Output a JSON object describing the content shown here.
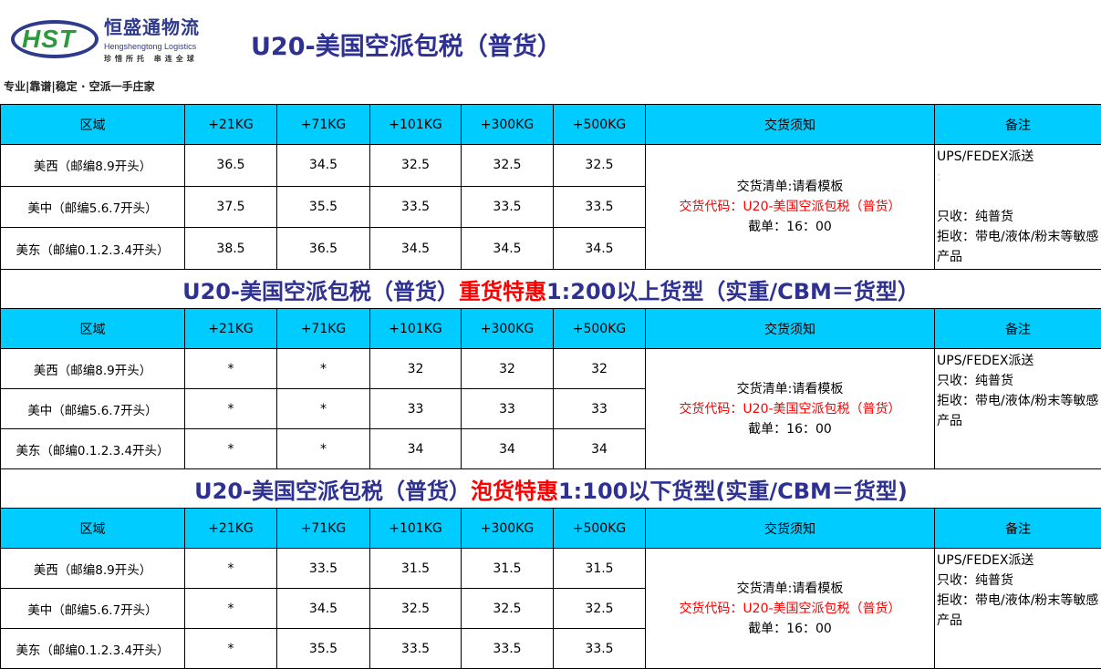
{
  "logo": {
    "mark": "HST",
    "name_cn": "恒盛通物流",
    "name_en": "Hengshengtong Logistics",
    "tagline": "珍惜所托  串连全球",
    "slogan": "专业|靠谱|稳定 · 空派一手庄家"
  },
  "page_title": "U20-美国空派包税（普货）",
  "colors": {
    "header_bg": "#00ccff",
    "title_blue": "#2e3192",
    "accent_red": "#ff0000"
  },
  "columns": [
    "区域",
    "+21KG",
    "+71KG",
    "+101KG",
    "+300KG",
    "+500KG",
    "交货须知",
    "备注"
  ],
  "sections": [
    {
      "rows": [
        {
          "region": "美西（邮编8.9开头）",
          "prices": [
            "36.5",
            "34.5",
            "32.5",
            "32.5",
            "32.5"
          ]
        },
        {
          "region": "美中（邮编5.6.7开头）",
          "prices": [
            "37.5",
            "35.5",
            "33.5",
            "33.5",
            "33.5"
          ]
        },
        {
          "region": "美东（邮编0.1.2.3.4开头）",
          "prices": [
            "38.5",
            "36.5",
            "34.5",
            "34.5",
            "34.5"
          ]
        }
      ],
      "notes": {
        "line1": "交货清单:请看模板",
        "line2": "交货代码：U20-美国空派包税（普货）",
        "line3": "截单：16：00"
      },
      "remarks": {
        "line1": "UPS/FEDEX派送",
        "line2": ":",
        "line3": "只收：纯普货",
        "line4": "拒收：带电/液体/粉末等敏感产品"
      }
    },
    {
      "title": {
        "part1": "U20-美国空派包税（普货）",
        "part2": "重货特惠",
        "part3": "1:200以上货型（实重/CBM＝货型）"
      },
      "rows": [
        {
          "region": "美西（邮编8.9开头）",
          "prices": [
            "*",
            "*",
            "32",
            "32",
            "32"
          ]
        },
        {
          "region": "美中（邮编5.6.7开头）",
          "prices": [
            "*",
            "*",
            "33",
            "33",
            "33"
          ]
        },
        {
          "region": "美东（邮编0.1.2.3.4开头）",
          "prices": [
            "*",
            "*",
            "34",
            "34",
            "34"
          ]
        }
      ],
      "notes": {
        "line1": "交货清单:请看模板",
        "line2": "交货代码：U20-美国空派包税（普货）",
        "line3": "截单：16：00"
      },
      "remarks": {
        "line1": "UPS/FEDEX派送",
        "line3": "只收：纯普货",
        "line4": "拒收：带电/液体/粉末等敏感产品"
      }
    },
    {
      "title": {
        "part1": "U20-美国空派包税（普货）",
        "part2": "泡货特惠",
        "part3": "1:100以下货型(实重/CBM＝货型)"
      },
      "rows": [
        {
          "region": "美西（邮编8.9开头）",
          "prices": [
            "*",
            "33.5",
            "31.5",
            "31.5",
            "31.5"
          ]
        },
        {
          "region": "美中（邮编5.6.7开头）",
          "prices": [
            "*",
            "34.5",
            "32.5",
            "32.5",
            "32.5"
          ]
        },
        {
          "region": "美东（邮编0.1.2.3.4开头）",
          "prices": [
            "*",
            "35.5",
            "33.5",
            "33.5",
            "33.5"
          ]
        }
      ],
      "notes": {
        "line1": "交货清单:请看模板",
        "line2": "交货代码：U20-美国空派包税（普货）",
        "line3": "截单：16：00"
      },
      "remarks": {
        "line1": "UPS/FEDEX派送",
        "line3": "只收：纯普货",
        "line4": "拒收：带电/液体/粉末等敏感产品"
      }
    }
  ]
}
